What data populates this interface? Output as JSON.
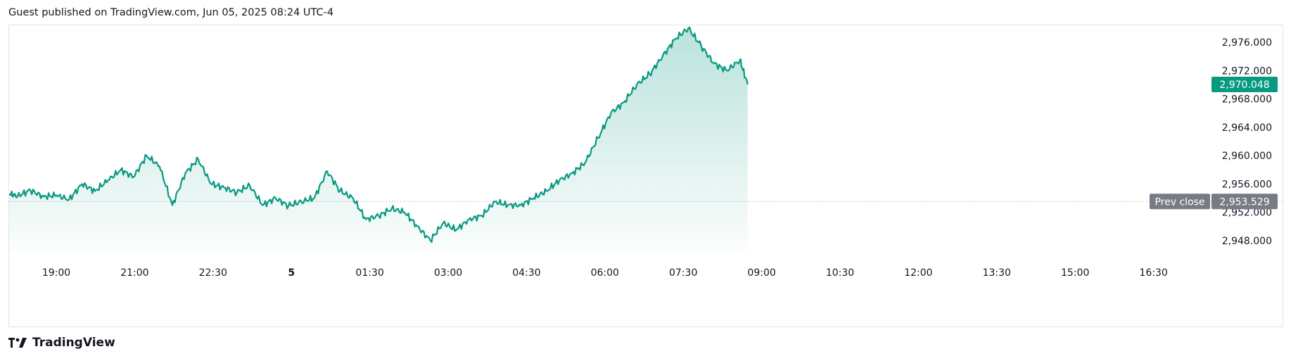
{
  "header": {
    "text": "Guest published on TradingView.com, Jun 05, 2025 08:24 UTC-4"
  },
  "footer": {
    "brand": "TradingView",
    "logo_icon": "tradingview-logo-icon"
  },
  "colors": {
    "line": "#089981",
    "fill": "#089981",
    "prev_close_badge": "#787b86",
    "grid": "#e0e3eb"
  },
  "chart_data": {
    "type": "area",
    "x_tick_labels": [
      "19:00",
      "21:00",
      "22:30",
      "5",
      "01:30",
      "03:00",
      "04:30",
      "06:00",
      "07:30",
      "09:00",
      "10:30",
      "12:00",
      "13:30",
      "15:00",
      "16:30"
    ],
    "x_tick_bold": [
      false,
      false,
      false,
      true,
      false,
      false,
      false,
      false,
      false,
      false,
      false,
      false,
      false,
      false,
      false
    ],
    "y_tick_labels": [
      "2,976.000",
      "2,972.000",
      "2,968.000",
      "2,964.000",
      "2,960.000",
      "2,956.000",
      "2,952.000",
      "2,948.000"
    ],
    "y_tick_values": [
      2976,
      2972,
      2968,
      2964,
      2960,
      2956,
      2952,
      2948
    ],
    "ylim": [
      2946.6,
      2978.4
    ],
    "series": [
      {
        "x": [
          "18:00",
          "18:15",
          "18:30",
          "18:45",
          "19:00",
          "19:15",
          "19:30",
          "19:45",
          "20:00",
          "20:15",
          "20:30",
          "20:45",
          "21:00",
          "21:15",
          "21:30",
          "21:45",
          "22:00",
          "22:15",
          "22:30",
          "22:45",
          "23:00",
          "23:15",
          "23:30",
          "23:45",
          "00:00",
          "00:15",
          "00:30",
          "00:45",
          "01:00",
          "01:15",
          "01:30",
          "01:45",
          "02:00",
          "02:15",
          "02:30",
          "02:45",
          "03:00",
          "03:15",
          "03:30",
          "03:45",
          "04:00",
          "04:15",
          "04:30",
          "04:45",
          "05:00",
          "05:15",
          "05:30",
          "05:45",
          "06:00",
          "06:15",
          "06:30",
          "06:45",
          "07:00",
          "07:15",
          "07:30",
          "07:45",
          "08:00",
          "08:15",
          "08:24"
        ],
        "values": [
          2954.6,
          2954.3,
          2955.1,
          2954.2,
          2954.4,
          2953.8,
          2956.0,
          2955.0,
          2956.5,
          2958.0,
          2957.0,
          2960.0,
          2958.5,
          2953.0,
          2957.5,
          2959.5,
          2956.0,
          2955.5,
          2954.8,
          2955.8,
          2953.0,
          2954.0,
          2952.9,
          2953.5,
          2954.0,
          2957.8,
          2955.0,
          2954.0,
          2951.0,
          2951.5,
          2952.5,
          2952.0,
          2950.0,
          2948.0,
          2950.5,
          2949.5,
          2951.0,
          2951.5,
          2953.5,
          2953.0,
          2953.0,
          2954.0,
          2955.0,
          2956.5,
          2957.5,
          2959.0,
          2962.5,
          2966.0,
          2967.5,
          2970.0,
          2971.5,
          2974.0,
          2976.5,
          2978.0,
          2975.5,
          2973.0,
          2972.0,
          2973.5,
          2970.048
        ]
      }
    ],
    "last_value": {
      "label": "2,970.048",
      "value": 2970.048
    },
    "prev_close": {
      "label": "Prev close",
      "value_label": "2,953.529",
      "value": 2953.529
    }
  }
}
